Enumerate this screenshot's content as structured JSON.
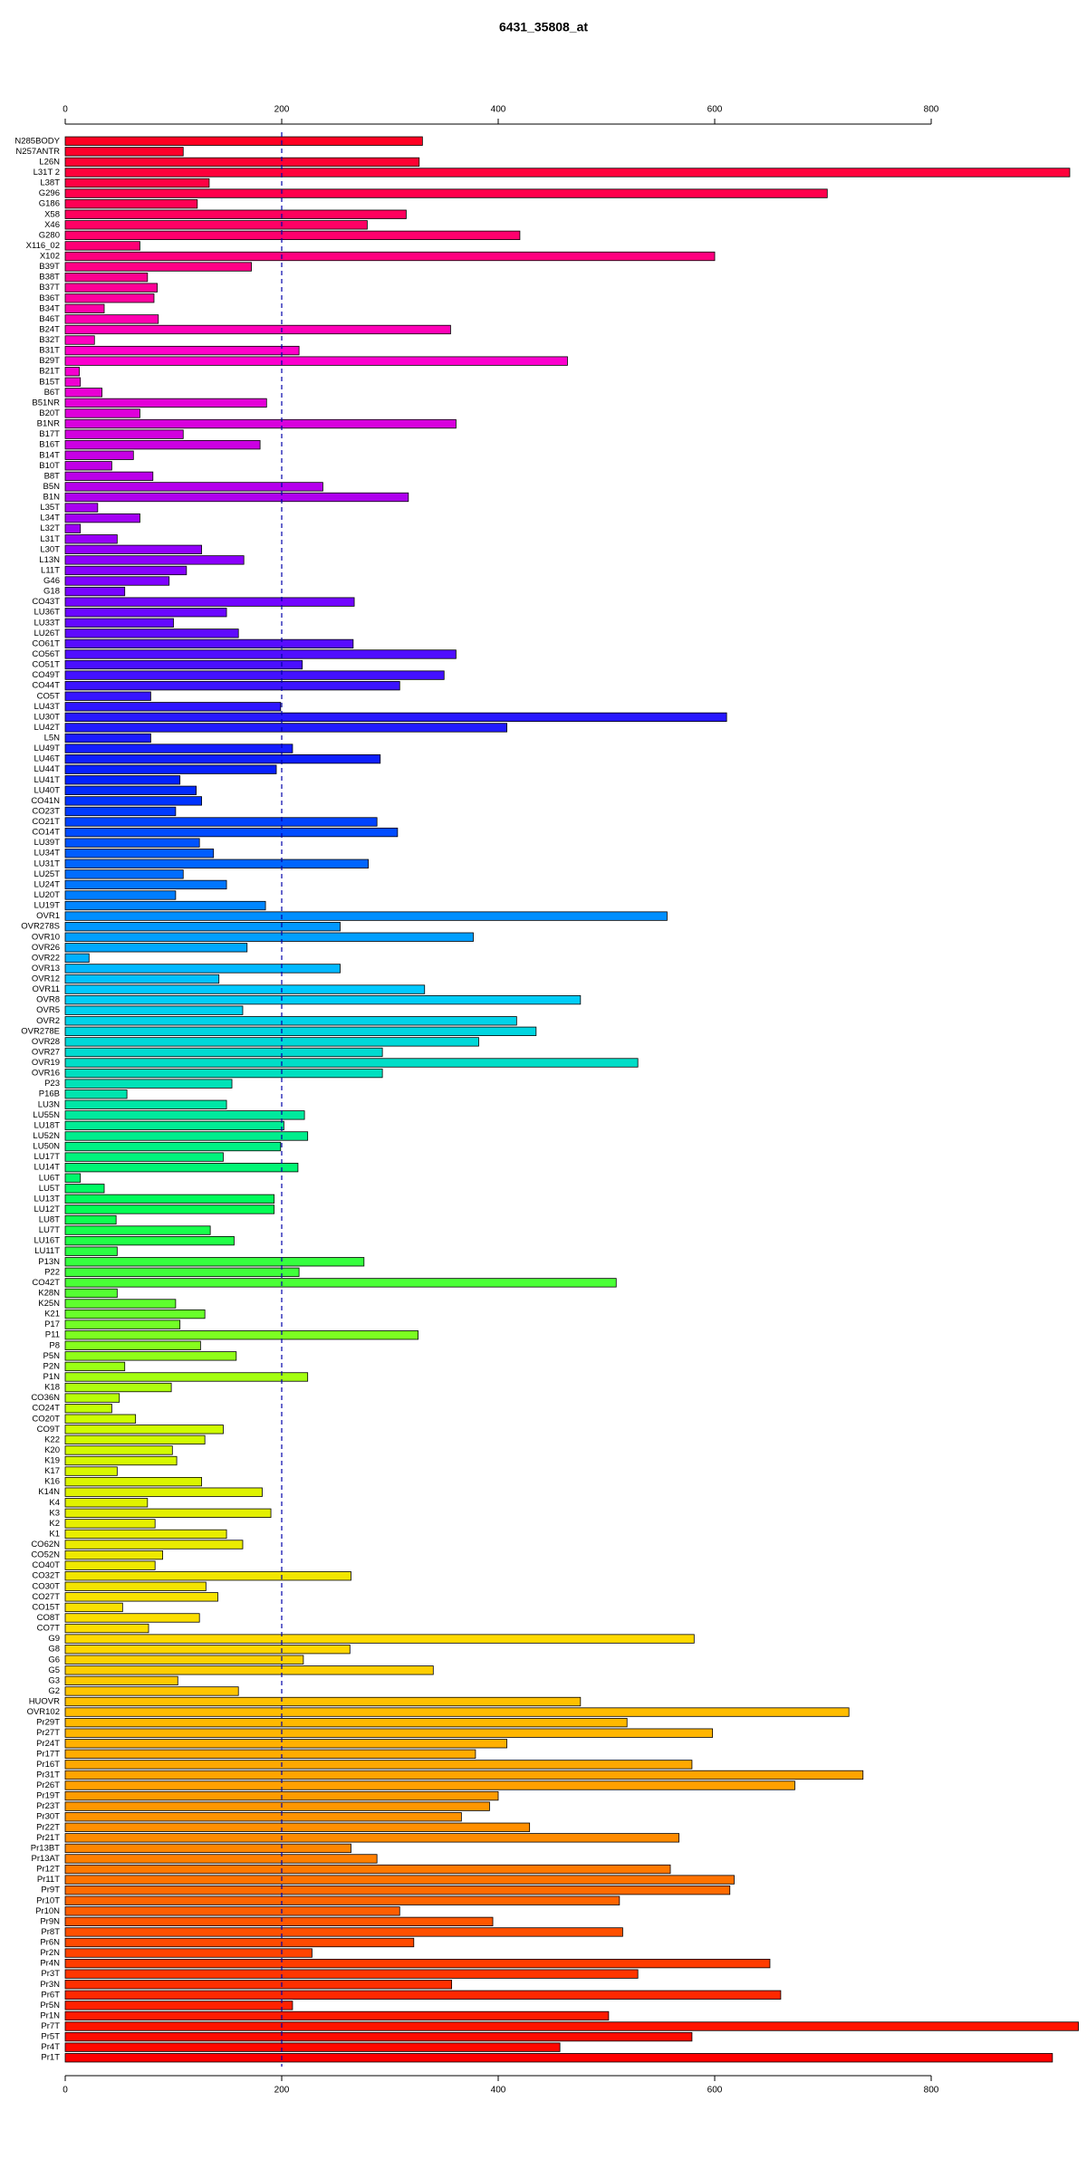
{
  "chart_data": {
    "type": "barh",
    "title": "6431_35808_at",
    "categories": [
      "N285BODY",
      "N257ANTR",
      "L26N",
      "L31T 2",
      "L38T",
      "G296",
      "G186",
      "X58",
      "X46",
      "G280",
      "X116_02",
      "X102",
      "B39T",
      "B38T",
      "B37T",
      "B36T",
      "B34T",
      "B46T",
      "B24T",
      "B32T",
      "B31T",
      "B29T",
      "B21T",
      "B15T",
      "B6T",
      "B51NR",
      "B20T",
      "B1NR",
      "B17T",
      "B16T",
      "B14T",
      "B10T",
      "B8T",
      "B5N",
      "B1N",
      "L35T",
      "L34T",
      "L32T",
      "L31T",
      "L30T",
      "L13N",
      "L11T",
      "G46",
      "G18",
      "CO43T",
      "LU36T",
      "LU33T",
      "LU26T",
      "CO61T",
      "CO56T",
      "CO51T",
      "CO49T",
      "CO44T",
      "CO5T",
      "LU43T",
      "LU30T",
      "LU42T",
      "L5N",
      "LU49T",
      "LU46T",
      "LU44T",
      "LU41T",
      "LU40T",
      "CO41N",
      "CO23T",
      "CO21T",
      "CO14T",
      "LU39T",
      "LU34T",
      "LU31T",
      "LU25T",
      "LU24T",
      "LU20T",
      "LU19T",
      "OVR1",
      "OVR278S",
      "OVR10",
      "OVR26",
      "OVR22",
      "OVR13",
      "OVR12",
      "OVR11",
      "OVR8",
      "OVR5",
      "OVR2",
      "OVR278E",
      "OVR28",
      "OVR27",
      "OVR19",
      "OVR16",
      "P23",
      "P16B",
      "LU3N",
      "LU55N",
      "LU18T",
      "LU52N",
      "LU50N",
      "LU17T",
      "LU14T",
      "LU6T",
      "LU5T",
      "LU13T",
      "LU12T",
      "LU8T",
      "LU7T",
      "LU16T",
      "LU11T",
      "P13N",
      "P22",
      "CO42T",
      "K28N",
      "K25N",
      "K21",
      "P17",
      "P11",
      "P8",
      "P5N",
      "P2N",
      "P1N",
      "K18",
      "CO36N",
      "CO24T",
      "CO20T",
      "CO9T",
      "K22",
      "K20",
      "K19",
      "K17",
      "K16",
      "K14N",
      "K4",
      "K3",
      "K2",
      "K1",
      "CO62N",
      "CO52N",
      "CO40T",
      "CO32T",
      "CO30T",
      "CO27T",
      "CO15T",
      "CO8T",
      "CO7T",
      "G9",
      "G8",
      "G6",
      "G5",
      "G3",
      "G2",
      "HUOVR",
      "OVR102",
      "Pr29T",
      "Pr27T",
      "Pr24T",
      "Pr17T",
      "Pr16T",
      "Pr31T",
      "Pr26T",
      "Pr19T",
      "Pr23T",
      "Pr30T",
      "Pr22T",
      "Pr21T",
      "Pr13BT",
      "Pr13AT",
      "Pr12T",
      "Pr11T",
      "Pr9T",
      "Pr10T",
      "Pr10N",
      "Pr9N",
      "Pr8T",
      "Pr6N",
      "Pr2N",
      "Pr4N",
      "Pr3T",
      "Pr3N",
      "Pr6T",
      "Pr5N",
      "Pr1N",
      "Pr7T",
      "Pr5T",
      "Pr4T",
      "Pr1T"
    ],
    "values": [
      330,
      109,
      327,
      928,
      133,
      704,
      122,
      315,
      279,
      420,
      69,
      600,
      172,
      76,
      85,
      82,
      36,
      86,
      356,
      27,
      216,
      464,
      13,
      14,
      34,
      186,
      69,
      361,
      109,
      180,
      63,
      43,
      81,
      238,
      317,
      30,
      69,
      14,
      48,
      126,
      165,
      112,
      96,
      55,
      267,
      149,
      100,
      160,
      266,
      361,
      219,
      350,
      309,
      79,
      199,
      611,
      408,
      79,
      210,
      291,
      195,
      106,
      121,
      126,
      102,
      288,
      307,
      124,
      137,
      280,
      109,
      149,
      102,
      185,
      556,
      254,
      377,
      168,
      22,
      254,
      142,
      332,
      476,
      164,
      417,
      435,
      382,
      293,
      529,
      293,
      154,
      57,
      149,
      221,
      202,
      224,
      199,
      146,
      215,
      14,
      36,
      193,
      193,
      47,
      134,
      156,
      48,
      276,
      216,
      509,
      48,
      102,
      129,
      106,
      326,
      125,
      158,
      55,
      224,
      98,
      50,
      43,
      65,
      146,
      129,
      99,
      103,
      48,
      126,
      182,
      76,
      190,
      83,
      149,
      164,
      90,
      83,
      264,
      130,
      141,
      53,
      124,
      77,
      581,
      263,
      220,
      340,
      104,
      160,
      476,
      724,
      519,
      598,
      408,
      379,
      579,
      737,
      674,
      400,
      392,
      366,
      429,
      567,
      264,
      288,
      559,
      618,
      614,
      512,
      309,
      395,
      515,
      322,
      228,
      651,
      529,
      357,
      661,
      210,
      502,
      936,
      579,
      457,
      912
    ],
    "palette": [
      "#ff0022",
      "#ff00cc",
      "#8800ff",
      "#0022ff",
      "#00ccff",
      "#00ff55",
      "#ccff00",
      "#ffdd00",
      "#ff8800",
      "#ff0000"
    ],
    "xlim": [
      0,
      940
    ],
    "xticks": [
      0,
      200,
      400,
      600,
      800
    ],
    "reference_line": 200,
    "reference_color": "#0000aa"
  }
}
